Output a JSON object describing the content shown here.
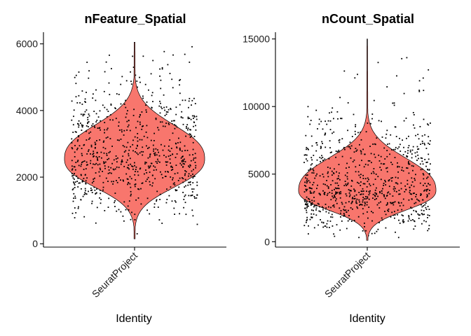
{
  "chart_data": [
    {
      "type": "violin",
      "title": "nFeature_Spatial",
      "xlabel": "Identity",
      "ylabel": "",
      "categories": [
        "SeuratProject"
      ],
      "ylim": [
        -100,
        6350
      ],
      "yticks": [
        0,
        2000,
        4000,
        6000
      ],
      "ytick_labels": [
        "0",
        "2000",
        "4000",
        "6000"
      ],
      "distribution": {
        "min": 150,
        "max": 6050,
        "mode": 2550,
        "bulk_low": 1500,
        "bulk_high": 3700,
        "points_shown": "jittered individual spots overlay"
      },
      "colors": {
        "violin_fill": "#F8766D",
        "points": "#000000"
      },
      "grid": false,
      "legend": "none"
    },
    {
      "type": "violin",
      "title": "nCount_Spatial",
      "xlabel": "Identity",
      "ylabel": "",
      "categories": [
        "SeuratProject"
      ],
      "ylim": [
        -400,
        15500
      ],
      "yticks": [
        0,
        5000,
        10000,
        15000
      ],
      "ytick_labels": [
        "0",
        "5000",
        "10000",
        "15000"
      ],
      "distribution": {
        "min": 100,
        "max": 15000,
        "mode": 3800,
        "bulk_low": 2000,
        "bulk_high": 6500,
        "points_shown": "jittered individual spots overlay"
      },
      "colors": {
        "violin_fill": "#F8766D",
        "points": "#000000"
      },
      "grid": false,
      "legend": "none"
    }
  ]
}
